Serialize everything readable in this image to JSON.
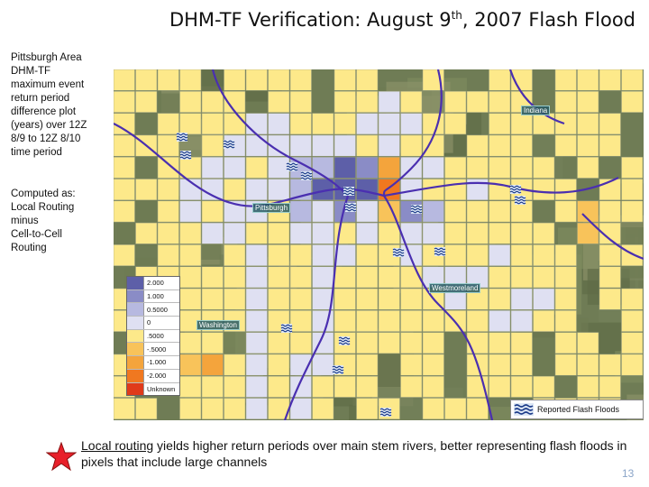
{
  "title": {
    "prefix": "DHM-TF Verification:  August 9",
    "sup": "th",
    "suffix": ", 2007 Flash Flood"
  },
  "side_text": {
    "block1": [
      "Pittsburgh Area",
      "DHM-TF",
      "maximum event",
      "return period",
      "difference plot",
      "(years) over 12Z",
      "8/9 to 12Z 8/10",
      "time period"
    ],
    "block2": [
      "Computed as:",
      "Local Routing",
      "minus",
      "Cell-to-Cell",
      "Routing"
    ]
  },
  "legend": [
    {
      "label": "2.000",
      "color": "#5d5fa8"
    },
    {
      "label": "1.000",
      "color": "#8a8cc6"
    },
    {
      "label": "0.5000",
      "color": "#b7b9e0"
    },
    {
      "label": "0",
      "color": "#dfe0f2"
    },
    {
      "label": ".5000",
      "color": "#fde98a"
    },
    {
      "label": "-.5000",
      "color": "#f8c35a"
    },
    {
      "label": "-1.000",
      "color": "#f4a43c"
    },
    {
      "label": "-2.000",
      "color": "#f07820"
    },
    {
      "label": "Unknown",
      "color": "#e03a1a"
    }
  ],
  "places": {
    "indiana": "Indiana",
    "pittsburgh": "Pittsburgh",
    "westmoreland": "Westmoreland",
    "washington": "Washington"
  },
  "flood_legend": "Reported Flash Floods",
  "caption": {
    "underlined": "Local routing",
    "rest": " yields higher return periods over main stem rivers,  better representing flash floods in pixels that include large channels"
  },
  "page_number": "13"
}
